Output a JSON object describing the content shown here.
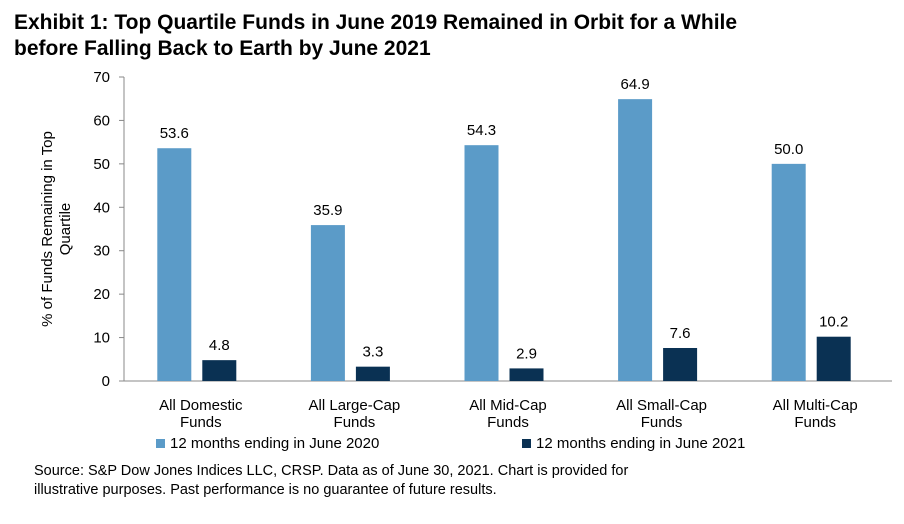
{
  "title_line1": "Exhibit 1: Top Quartile Funds in June 2019 Remained in Orbit for a While",
  "title_line2": "before Falling Back to Earth by June 2021",
  "source_line1": "Source: S&P Dow Jones Indices LLC, CRSP.  Data as of June 30, 2021.  Chart is provided for",
  "source_line2": "illustrative purposes.  Past performance is no guarantee of future results.",
  "chart_data": {
    "type": "bar",
    "ylabel_line1": "% of Funds Remaining in Top",
    "ylabel_line2": "Quartile",
    "ylim": [
      0,
      70
    ],
    "yticks": [
      0,
      10,
      20,
      30,
      40,
      50,
      60,
      70
    ],
    "grid": false,
    "legend_position": "bottom",
    "categories": [
      [
        "All Domestic",
        "Funds"
      ],
      [
        "All Large-Cap",
        "Funds"
      ],
      [
        "All Mid-Cap",
        "Funds"
      ],
      [
        "All Small-Cap",
        "Funds"
      ],
      [
        "All Multi-Cap",
        "Funds"
      ]
    ],
    "series": [
      {
        "name": "12 months ending in June 2020",
        "color": "#5b9bc8",
        "values": [
          53.6,
          35.9,
          54.3,
          64.9,
          50.0
        ],
        "labels": [
          "53.6",
          "35.9",
          "54.3",
          "64.9",
          "50.0"
        ]
      },
      {
        "name": "12 months ending in June 2021",
        "color": "#0a3153",
        "values": [
          4.8,
          3.3,
          2.9,
          7.6,
          10.2
        ],
        "labels": [
          "4.8",
          "3.3",
          "2.9",
          "7.6",
          "10.2"
        ]
      }
    ]
  }
}
